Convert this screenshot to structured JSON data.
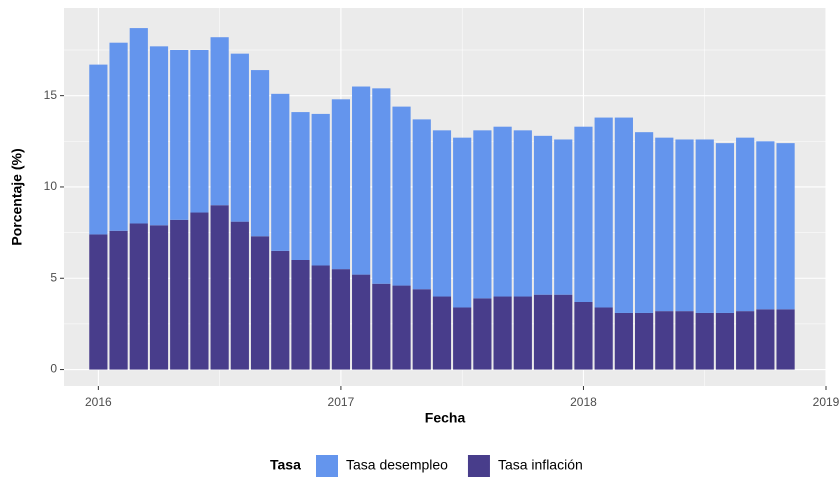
{
  "chart_data": {
    "type": "stacked_bar",
    "x_label": "Fecha",
    "y_label": "Porcentaje (%)",
    "legend_title": "Tasa",
    "legend_position": "bottom",
    "grid": true,
    "x": [
      0,
      1,
      2,
      3,
      4,
      5,
      6,
      7,
      8,
      9,
      10,
      11,
      12,
      13,
      14,
      15,
      16,
      17,
      18,
      19,
      20,
      21,
      22,
      23,
      24,
      25,
      26,
      27,
      28,
      29,
      30,
      31,
      32,
      33,
      34
    ],
    "xlim": [
      -1.7,
      36.0
    ],
    "xticks": [
      {
        "value": 0,
        "label": "2016"
      },
      {
        "value": 12,
        "label": "2017"
      },
      {
        "value": 24,
        "label": "2018"
      },
      {
        "value": 36,
        "label": "2019"
      }
    ],
    "xminorticks": [
      6,
      18,
      30
    ],
    "ylim": [
      -0.9,
      19.8
    ],
    "yticks": [
      0,
      5,
      10,
      15
    ],
    "yminorticks": [
      2.5,
      7.5,
      12.5,
      17.5
    ],
    "series": [
      {
        "name": "Tasa desempleo",
        "color": "#6495ed",
        "values": [
          9.3,
          10.3,
          10.7,
          9.8,
          9.3,
          8.9,
          9.2,
          9.2,
          9.1,
          8.6,
          8.1,
          8.3,
          9.3,
          10.3,
          10.7,
          9.8,
          9.3,
          9.1,
          9.3,
          9.2,
          9.3,
          9.1,
          8.7,
          8.5,
          9.6,
          10.4,
          10.7,
          9.9,
          9.5,
          9.4,
          9.5,
          9.3,
          9.5,
          9.2,
          9.1
        ]
      },
      {
        "name": "Tasa inflación",
        "color": "#483d8b",
        "values": [
          7.4,
          7.6,
          8.0,
          7.9,
          8.2,
          8.6,
          9.0,
          8.1,
          7.3,
          6.5,
          6.0,
          5.7,
          5.5,
          5.2,
          4.7,
          4.6,
          4.4,
          4.0,
          3.4,
          3.9,
          4.0,
          4.0,
          4.1,
          4.1,
          3.7,
          3.4,
          3.1,
          3.1,
          3.2,
          3.2,
          3.1,
          3.1,
          3.2,
          3.3,
          3.3
        ]
      }
    ]
  }
}
